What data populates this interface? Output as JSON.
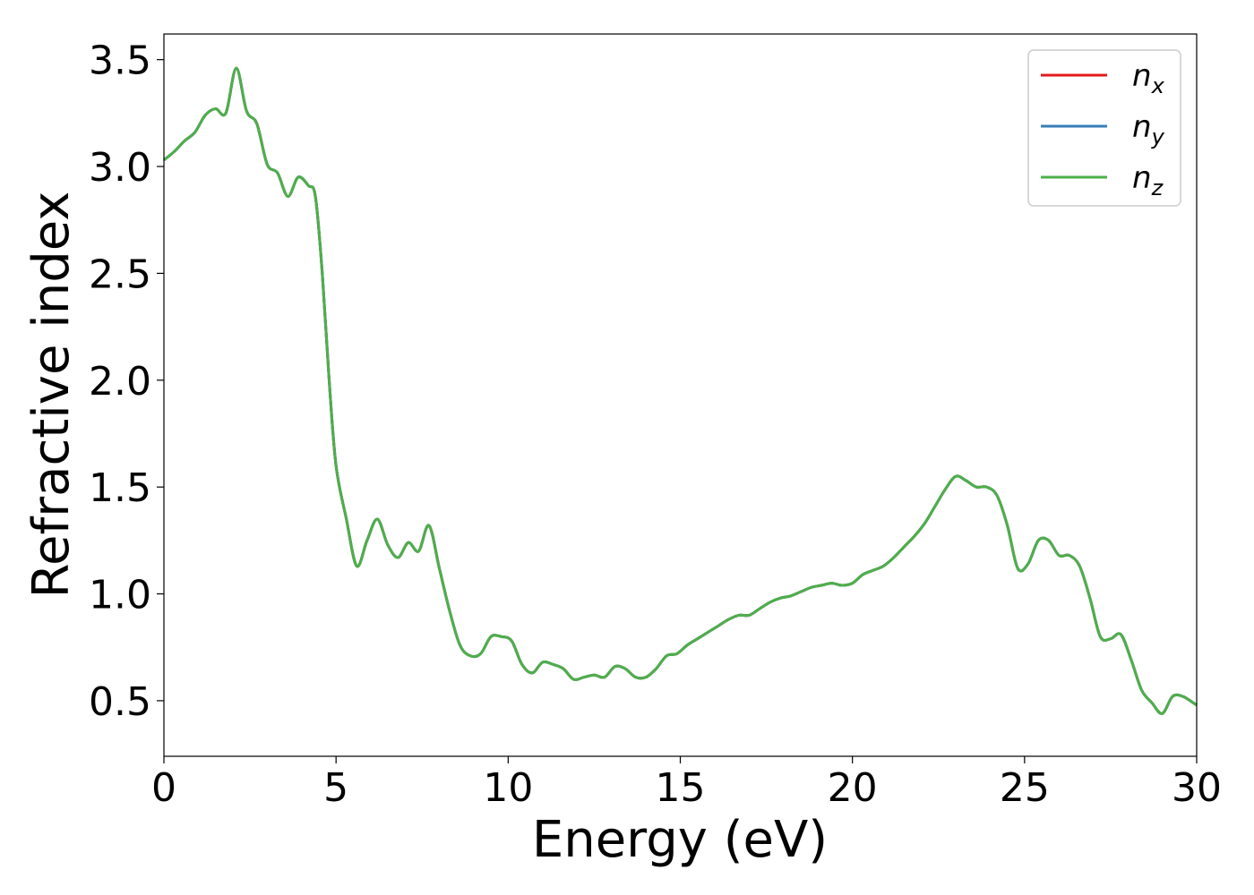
{
  "chart_data": {
    "type": "line",
    "xlabel": "Energy (eV)",
    "ylabel": "Refractive index",
    "xlim": [
      0,
      30
    ],
    "ylim": [
      0.24,
      3.62
    ],
    "xticks": [
      0,
      5,
      10,
      15,
      20,
      25,
      30
    ],
    "xtick_labels": [
      "0",
      "5",
      "10",
      "15",
      "20",
      "25",
      "30"
    ],
    "yticks": [
      0.5,
      1.0,
      1.5,
      2.0,
      2.5,
      3.0,
      3.5
    ],
    "ytick_labels": [
      "0.5",
      "1.0",
      "1.5",
      "2.0",
      "2.5",
      "3.0",
      "3.5"
    ],
    "grid": false,
    "legend_position": "top-right",
    "x": [
      0,
      0.3,
      0.6,
      0.9,
      1.2,
      1.5,
      1.8,
      2.1,
      2.4,
      2.7,
      3.0,
      3.3,
      3.6,
      3.9,
      4.2,
      4.4,
      4.6,
      4.8,
      5.0,
      5.3,
      5.6,
      5.9,
      6.2,
      6.5,
      6.8,
      7.1,
      7.4,
      7.7,
      8.0,
      8.3,
      8.6,
      8.9,
      9.2,
      9.5,
      9.8,
      10.1,
      10.4,
      10.7,
      11.0,
      11.3,
      11.6,
      11.9,
      12.2,
      12.5,
      12.8,
      13.1,
      13.4,
      13.7,
      14.0,
      14.3,
      14.6,
      14.9,
      15.2,
      15.5,
      15.8,
      16.1,
      16.4,
      16.7,
      17.0,
      17.3,
      17.6,
      17.9,
      18.2,
      18.5,
      18.8,
      19.1,
      19.4,
      19.7,
      20.0,
      20.3,
      20.6,
      20.9,
      21.2,
      21.5,
      21.8,
      22.1,
      22.4,
      22.7,
      23.0,
      23.3,
      23.6,
      23.9,
      24.2,
      24.5,
      24.8,
      25.1,
      25.4,
      25.7,
      26.0,
      26.3,
      26.6,
      26.9,
      27.2,
      27.5,
      27.8,
      28.1,
      28.4,
      28.7,
      29.0,
      29.3,
      29.6,
      29.9,
      30.0
    ],
    "series": [
      {
        "name": "n_x",
        "color": "#e41a1c",
        "values": [
          3.03,
          3.07,
          3.12,
          3.16,
          3.24,
          3.27,
          3.25,
          3.46,
          3.26,
          3.2,
          3.01,
          2.97,
          2.86,
          2.95,
          2.91,
          2.86,
          2.5,
          2.0,
          1.6,
          1.35,
          1.13,
          1.25,
          1.35,
          1.23,
          1.17,
          1.24,
          1.2,
          1.32,
          1.12,
          0.92,
          0.76,
          0.71,
          0.72,
          0.8,
          0.8,
          0.78,
          0.67,
          0.63,
          0.68,
          0.67,
          0.65,
          0.6,
          0.61,
          0.62,
          0.61,
          0.66,
          0.65,
          0.61,
          0.61,
          0.65,
          0.71,
          0.72,
          0.76,
          0.79,
          0.82,
          0.85,
          0.88,
          0.9,
          0.9,
          0.93,
          0.96,
          0.98,
          0.99,
          1.01,
          1.03,
          1.04,
          1.05,
          1.04,
          1.05,
          1.09,
          1.11,
          1.13,
          1.17,
          1.22,
          1.27,
          1.33,
          1.41,
          1.49,
          1.55,
          1.53,
          1.5,
          1.5,
          1.46,
          1.32,
          1.12,
          1.14,
          1.25,
          1.25,
          1.18,
          1.18,
          1.13,
          0.98,
          0.8,
          0.79,
          0.81,
          0.69,
          0.55,
          0.49,
          0.44,
          0.52,
          0.52,
          0.49,
          0.48
        ]
      },
      {
        "name": "n_y",
        "color": "#377eb8",
        "values": [
          3.03,
          3.07,
          3.12,
          3.16,
          3.24,
          3.27,
          3.25,
          3.46,
          3.26,
          3.2,
          3.01,
          2.97,
          2.86,
          2.95,
          2.91,
          2.86,
          2.5,
          2.0,
          1.6,
          1.35,
          1.13,
          1.25,
          1.35,
          1.23,
          1.17,
          1.24,
          1.2,
          1.32,
          1.12,
          0.92,
          0.76,
          0.71,
          0.72,
          0.8,
          0.8,
          0.78,
          0.67,
          0.63,
          0.68,
          0.67,
          0.65,
          0.6,
          0.61,
          0.62,
          0.61,
          0.66,
          0.65,
          0.61,
          0.61,
          0.65,
          0.71,
          0.72,
          0.76,
          0.79,
          0.82,
          0.85,
          0.88,
          0.9,
          0.9,
          0.93,
          0.96,
          0.98,
          0.99,
          1.01,
          1.03,
          1.04,
          1.05,
          1.04,
          1.05,
          1.09,
          1.11,
          1.13,
          1.17,
          1.22,
          1.27,
          1.33,
          1.41,
          1.49,
          1.55,
          1.53,
          1.5,
          1.5,
          1.46,
          1.32,
          1.12,
          1.14,
          1.25,
          1.25,
          1.18,
          1.18,
          1.13,
          0.98,
          0.8,
          0.79,
          0.81,
          0.69,
          0.55,
          0.49,
          0.44,
          0.52,
          0.52,
          0.49,
          0.48
        ]
      },
      {
        "name": "n_z",
        "color": "#4daf4a",
        "values": [
          3.03,
          3.07,
          3.12,
          3.16,
          3.24,
          3.27,
          3.25,
          3.46,
          3.26,
          3.2,
          3.01,
          2.97,
          2.86,
          2.95,
          2.91,
          2.86,
          2.5,
          2.0,
          1.6,
          1.35,
          1.13,
          1.25,
          1.35,
          1.23,
          1.17,
          1.24,
          1.2,
          1.32,
          1.12,
          0.92,
          0.76,
          0.71,
          0.72,
          0.8,
          0.8,
          0.78,
          0.67,
          0.63,
          0.68,
          0.67,
          0.65,
          0.6,
          0.61,
          0.62,
          0.61,
          0.66,
          0.65,
          0.61,
          0.61,
          0.65,
          0.71,
          0.72,
          0.76,
          0.79,
          0.82,
          0.85,
          0.88,
          0.9,
          0.9,
          0.93,
          0.96,
          0.98,
          0.99,
          1.01,
          1.03,
          1.04,
          1.05,
          1.04,
          1.05,
          1.09,
          1.11,
          1.13,
          1.17,
          1.22,
          1.27,
          1.33,
          1.41,
          1.49,
          1.55,
          1.53,
          1.5,
          1.5,
          1.46,
          1.32,
          1.12,
          1.14,
          1.25,
          1.25,
          1.18,
          1.18,
          1.13,
          0.98,
          0.8,
          0.79,
          0.81,
          0.69,
          0.55,
          0.49,
          0.44,
          0.52,
          0.52,
          0.49,
          0.48
        ]
      }
    ],
    "legend": [
      {
        "base": "n",
        "sub": "x",
        "color": "#e41a1c"
      },
      {
        "base": "n",
        "sub": "y",
        "color": "#377eb8"
      },
      {
        "base": "n",
        "sub": "z",
        "color": "#4daf4a"
      }
    ]
  }
}
